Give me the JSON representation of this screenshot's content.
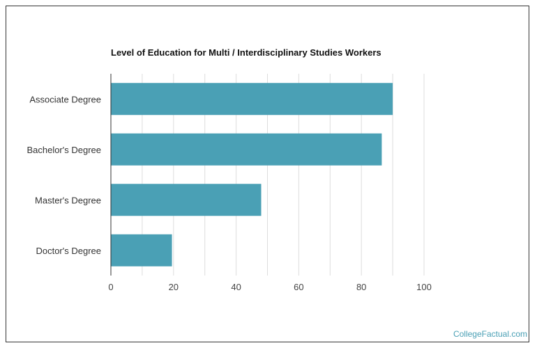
{
  "chart_data": {
    "type": "bar",
    "orientation": "horizontal",
    "title": "Level of Education for Multi / Interdisciplinary Studies Workers",
    "categories": [
      "Associate Degree",
      "Bachelor's Degree",
      "Master's Degree",
      "Doctor's Degree"
    ],
    "values": [
      90,
      86.5,
      48,
      19.5
    ],
    "xlim": [
      0,
      100
    ],
    "xticks": [
      "0",
      "20",
      "40",
      "60",
      "80",
      "100"
    ],
    "grid": true,
    "bar_color": "#4aa0b5"
  },
  "credit": "CollegeFactual.com",
  "credit_color": "#4aa0b5"
}
